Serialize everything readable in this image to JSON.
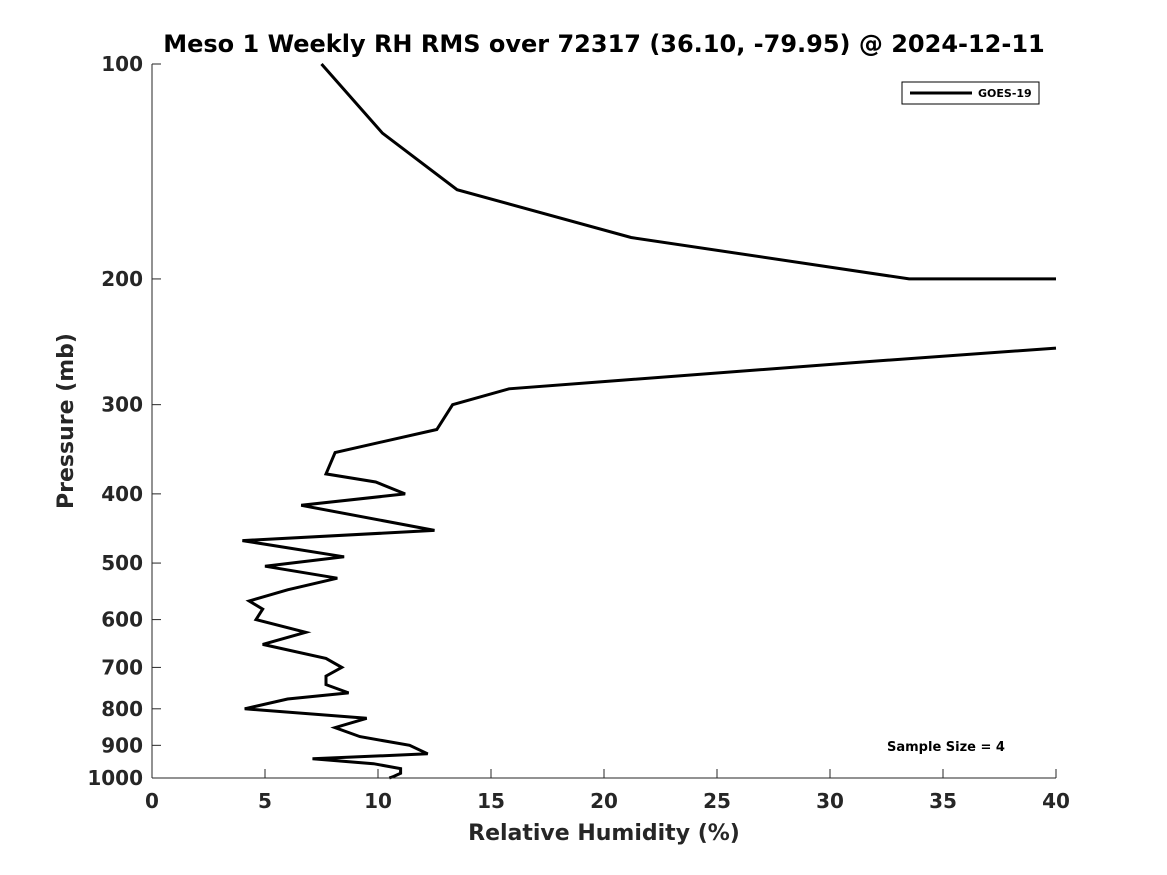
{
  "chart_data": {
    "type": "line",
    "title": "Meso 1 Weekly RH RMS over 72317 (36.10, -79.95) @ 2024-12-11",
    "xlabel": "Relative Humidity (%)",
    "ylabel": "Pressure (mb)",
    "xlim": [
      0,
      40
    ],
    "ylim": [
      1000,
      100
    ],
    "yscale": "log",
    "x_ticks": [
      0,
      5,
      10,
      15,
      20,
      25,
      30,
      35,
      40
    ],
    "y_ticks": [
      100,
      200,
      300,
      400,
      500,
      600,
      700,
      800,
      900,
      1000
    ],
    "grid": false,
    "legend_position": "top-right",
    "annotation": "Sample Size = 4",
    "series": [
      {
        "name": "GOES-19",
        "color": "#000000",
        "points": [
          {
            "x": 7.5,
            "y": 100
          },
          {
            "x": 10.2,
            "y": 125
          },
          {
            "x": 13.5,
            "y": 150
          },
          {
            "x": 21.2,
            "y": 175
          },
          {
            "x": 33.5,
            "y": 200
          },
          {
            "x": 40.0,
            "y": 200
          }
        ]
      },
      {
        "name": "GOES-19",
        "color": "#000000",
        "points": [
          {
            "x": 40.0,
            "y": 250
          },
          {
            "x": 31.0,
            "y": 262
          },
          {
            "x": 15.8,
            "y": 285
          },
          {
            "x": 13.3,
            "y": 300
          },
          {
            "x": 12.6,
            "y": 325
          },
          {
            "x": 8.1,
            "y": 350
          },
          {
            "x": 7.7,
            "y": 375
          },
          {
            "x": 9.9,
            "y": 385
          },
          {
            "x": 11.2,
            "y": 400
          },
          {
            "x": 6.6,
            "y": 415
          },
          {
            "x": 12.5,
            "y": 450
          },
          {
            "x": 4.0,
            "y": 465
          },
          {
            "x": 8.5,
            "y": 490
          },
          {
            "x": 5.0,
            "y": 505
          },
          {
            "x": 8.2,
            "y": 525
          },
          {
            "x": 6.0,
            "y": 545
          },
          {
            "x": 4.3,
            "y": 565
          },
          {
            "x": 4.9,
            "y": 580
          },
          {
            "x": 4.6,
            "y": 600
          },
          {
            "x": 6.8,
            "y": 625
          },
          {
            "x": 4.9,
            "y": 650
          },
          {
            "x": 7.7,
            "y": 680
          },
          {
            "x": 8.4,
            "y": 700
          },
          {
            "x": 7.7,
            "y": 720
          },
          {
            "x": 7.7,
            "y": 740
          },
          {
            "x": 8.7,
            "y": 760
          },
          {
            "x": 6.0,
            "y": 775
          },
          {
            "x": 4.1,
            "y": 800
          },
          {
            "x": 9.5,
            "y": 825
          },
          {
            "x": 8.1,
            "y": 850
          },
          {
            "x": 9.2,
            "y": 875
          },
          {
            "x": 11.4,
            "y": 900
          },
          {
            "x": 12.2,
            "y": 925
          },
          {
            "x": 7.1,
            "y": 940
          },
          {
            "x": 9.8,
            "y": 955
          },
          {
            "x": 11.0,
            "y": 970
          },
          {
            "x": 11.0,
            "y": 985
          },
          {
            "x": 10.7,
            "y": 995
          },
          {
            "x": 10.5,
            "y": 1000
          }
        ]
      }
    ]
  }
}
